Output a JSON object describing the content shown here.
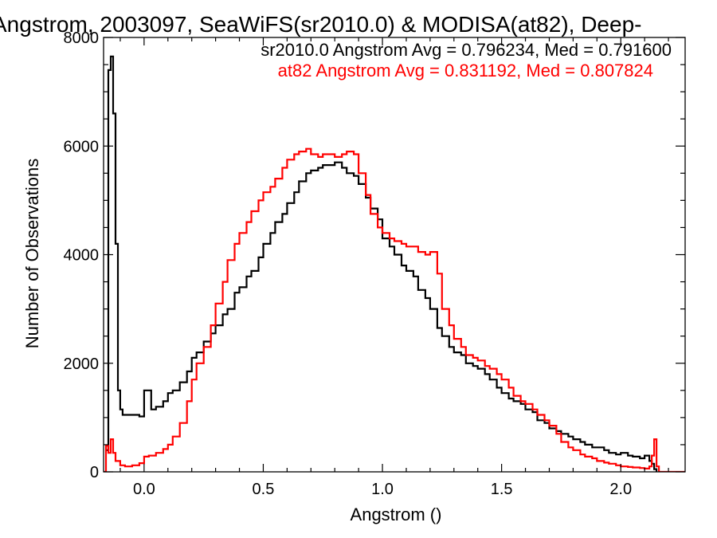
{
  "chart_data": {
    "type": "line",
    "title": "Angstrom, 2003097, SeaWiFS(sr2010.0) & MODISA(at82), Deep-",
    "xlabel": "Angstrom ()",
    "ylabel": "Number of Observations",
    "xlim": [
      -0.17,
      2.27
    ],
    "ylim": [
      0,
      8000
    ],
    "x_ticks": [
      0.0,
      0.5,
      1.0,
      1.5,
      2.0
    ],
    "x_tick_labels": [
      "0.0",
      "0.5",
      "1.0",
      "1.5",
      "2.0"
    ],
    "y_ticks": [
      0,
      2000,
      4000,
      6000,
      8000
    ],
    "y_tick_labels": [
      "0",
      "2000",
      "4000",
      "6000",
      "8000"
    ],
    "grid": false,
    "legend": "top-right",
    "series": [
      {
        "name": "sr2010.0 Angstrom Avg = 0.796234, Med = 0.791600",
        "color": "#000000",
        "x": [
          -0.16,
          -0.15,
          -0.14,
          -0.13,
          -0.12,
          -0.11,
          -0.1,
          -0.09,
          -0.08,
          -0.05,
          -0.02,
          0.0,
          0.03,
          0.05,
          0.08,
          0.1,
          0.12,
          0.15,
          0.18,
          0.2,
          0.22,
          0.25,
          0.28,
          0.3,
          0.33,
          0.35,
          0.38,
          0.4,
          0.43,
          0.45,
          0.48,
          0.5,
          0.53,
          0.55,
          0.58,
          0.6,
          0.63,
          0.65,
          0.68,
          0.7,
          0.73,
          0.75,
          0.78,
          0.8,
          0.83,
          0.85,
          0.88,
          0.9,
          0.93,
          0.95,
          0.98,
          1.0,
          1.03,
          1.05,
          1.08,
          1.1,
          1.13,
          1.15,
          1.18,
          1.2,
          1.23,
          1.25,
          1.28,
          1.3,
          1.33,
          1.35,
          1.38,
          1.4,
          1.43,
          1.45,
          1.48,
          1.5,
          1.53,
          1.55,
          1.58,
          1.6,
          1.63,
          1.65,
          1.68,
          1.7,
          1.73,
          1.75,
          1.78,
          1.8,
          1.83,
          1.85,
          1.88,
          1.9,
          1.93,
          1.95,
          1.98,
          2.0,
          2.03,
          2.05,
          2.08,
          2.1,
          2.12,
          2.13,
          2.14,
          2.15
        ],
        "y": [
          400,
          7400,
          7650,
          6600,
          4200,
          1500,
          1150,
          1050,
          1050,
          1050,
          1020,
          1500,
          1150,
          1200,
          1300,
          1450,
          1500,
          1650,
          1850,
          2100,
          2200,
          2400,
          2550,
          2700,
          2900,
          3000,
          3300,
          3400,
          3600,
          3700,
          3950,
          4200,
          4400,
          4600,
          4750,
          4950,
          5150,
          5350,
          5500,
          5550,
          5600,
          5650,
          5650,
          5700,
          5600,
          5500,
          5450,
          5300,
          5050,
          4850,
          4650,
          4300,
          4150,
          4000,
          3800,
          3700,
          3600,
          3350,
          3200,
          3000,
          2650,
          2500,
          2300,
          2200,
          2150,
          2000,
          1950,
          1900,
          1800,
          1700,
          1550,
          1450,
          1350,
          1300,
          1250,
          1150,
          1100,
          950,
          900,
          800,
          750,
          700,
          650,
          600,
          550,
          500,
          450,
          450,
          400,
          350,
          320,
          350,
          300,
          280,
          250,
          300,
          200,
          150,
          50,
          0
        ]
      },
      {
        "name": "at82 Angstrom Avg = 0.831192, Med = 0.807824",
        "color": "#ff0000",
        "x": [
          -0.17,
          -0.16,
          -0.15,
          -0.14,
          -0.13,
          -0.12,
          -0.1,
          -0.08,
          -0.05,
          -0.02,
          0.0,
          0.02,
          0.05,
          0.08,
          0.1,
          0.12,
          0.15,
          0.18,
          0.2,
          0.22,
          0.25,
          0.28,
          0.3,
          0.33,
          0.35,
          0.38,
          0.4,
          0.43,
          0.45,
          0.48,
          0.5,
          0.53,
          0.55,
          0.58,
          0.6,
          0.63,
          0.65,
          0.68,
          0.7,
          0.73,
          0.75,
          0.78,
          0.8,
          0.83,
          0.85,
          0.88,
          0.9,
          0.93,
          0.95,
          0.98,
          1.0,
          1.03,
          1.05,
          1.08,
          1.1,
          1.13,
          1.15,
          1.18,
          1.2,
          1.23,
          1.25,
          1.28,
          1.3,
          1.33,
          1.35,
          1.38,
          1.4,
          1.43,
          1.45,
          1.48,
          1.5,
          1.53,
          1.55,
          1.58,
          1.6,
          1.63,
          1.65,
          1.68,
          1.7,
          1.73,
          1.75,
          1.78,
          1.8,
          1.83,
          1.85,
          1.88,
          1.9,
          1.93,
          1.95,
          1.98,
          2.0,
          2.03,
          2.05,
          2.08,
          2.1,
          2.12,
          2.13,
          2.14,
          2.15,
          2.16,
          2.2,
          2.27
        ],
        "y": [
          0,
          480,
          350,
          600,
          350,
          200,
          120,
          100,
          120,
          160,
          280,
          300,
          350,
          420,
          500,
          650,
          900,
          1300,
          1700,
          2000,
          2300,
          2700,
          3100,
          3500,
          3900,
          4200,
          4400,
          4600,
          4800,
          5000,
          5150,
          5250,
          5400,
          5600,
          5750,
          5850,
          5900,
          5950,
          5850,
          5800,
          5850,
          5850,
          5800,
          5850,
          5900,
          5850,
          5500,
          5100,
          4750,
          4500,
          4400,
          4300,
          4250,
          4200,
          4150,
          4150,
          4050,
          4000,
          4050,
          3650,
          3000,
          2700,
          2450,
          2300,
          2150,
          2100,
          2050,
          1950,
          1900,
          1800,
          1700,
          1550,
          1400,
          1300,
          1250,
          1150,
          1050,
          950,
          850,
          700,
          550,
          450,
          400,
          320,
          280,
          250,
          200,
          170,
          150,
          120,
          100,
          90,
          80,
          70,
          60,
          100,
          300,
          600,
          100,
          0,
          0,
          0
        ]
      }
    ]
  }
}
